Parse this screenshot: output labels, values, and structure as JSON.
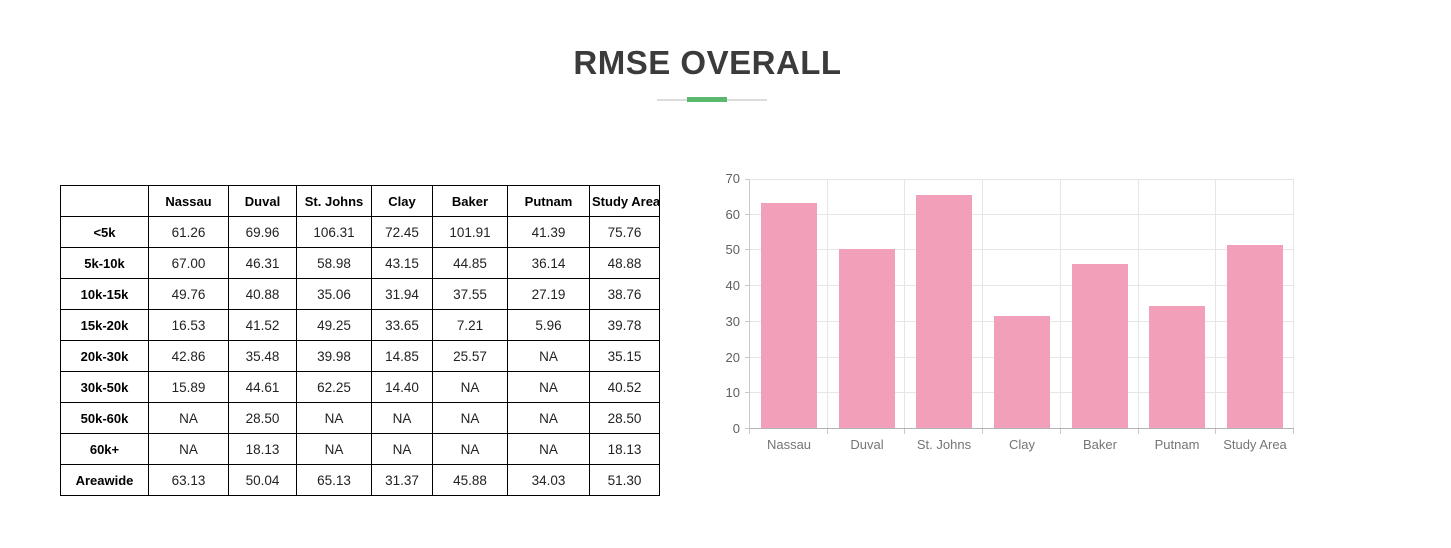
{
  "page": {
    "title": "RMSE OVERALL"
  },
  "theme": {
    "divider_green": "#5ab86d",
    "divider_gray": "#dcdcdc",
    "bar_pink": "#f2a0ba",
    "title_color": "#3b3b3b"
  },
  "table": {
    "columns": [
      "",
      "Nassau",
      "Duval",
      "St. Johns",
      "Clay",
      "Baker",
      "Putnam",
      "Study Area"
    ],
    "rows": [
      {
        "label": "<5k",
        "values": [
          "61.26",
          "69.96",
          "106.31",
          "72.45",
          "101.91",
          "41.39",
          "75.76"
        ]
      },
      {
        "label": "5k-10k",
        "values": [
          "67.00",
          "46.31",
          "58.98",
          "43.15",
          "44.85",
          "36.14",
          "48.88"
        ]
      },
      {
        "label": "10k-15k",
        "values": [
          "49.76",
          "40.88",
          "35.06",
          "31.94",
          "37.55",
          "27.19",
          "38.76"
        ]
      },
      {
        "label": "15k-20k",
        "values": [
          "16.53",
          "41.52",
          "49.25",
          "33.65",
          "7.21",
          "5.96",
          "39.78"
        ]
      },
      {
        "label": "20k-30k",
        "values": [
          "42.86",
          "35.48",
          "39.98",
          "14.85",
          "25.57",
          "NA",
          "35.15"
        ]
      },
      {
        "label": "30k-50k",
        "values": [
          "15.89",
          "44.61",
          "62.25",
          "14.40",
          "NA",
          "NA",
          "40.52"
        ]
      },
      {
        "label": "50k-60k",
        "values": [
          "NA",
          "28.50",
          "NA",
          "NA",
          "NA",
          "NA",
          "28.50"
        ]
      },
      {
        "label": "60k+",
        "values": [
          "NA",
          "18.13",
          "NA",
          "NA",
          "NA",
          "NA",
          "18.13"
        ]
      },
      {
        "label": "Areawide",
        "values": [
          "63.13",
          "50.04",
          "65.13",
          "31.37",
          "45.88",
          "34.03",
          "51.30"
        ]
      }
    ]
  },
  "chart_data": {
    "type": "bar",
    "categories": [
      "Nassau",
      "Duval",
      "St. Johns",
      "Clay",
      "Baker",
      "Putnam",
      "Study Area"
    ],
    "values": [
      63.13,
      50.04,
      65.13,
      31.37,
      45.88,
      34.03,
      51.3
    ],
    "title": "",
    "xlabel": "",
    "ylabel": "",
    "ylim": [
      0,
      70
    ],
    "yticks": [
      0,
      10,
      20,
      30,
      40,
      50,
      60,
      70
    ],
    "bar_color": "#f2a0ba",
    "grid": true,
    "legend": "none"
  }
}
